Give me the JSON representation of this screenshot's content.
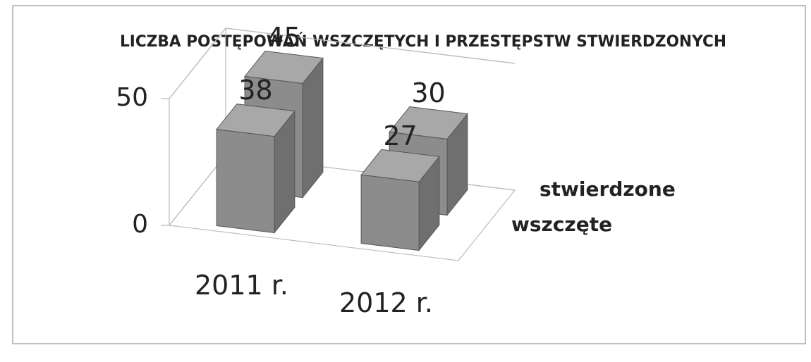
{
  "chart_data": {
    "type": "bar3d",
    "title": "LICZBA POSTĘPOWAŃ WSZCZĘTYCH I PRZESTĘPSTW STWIERDZONYCH",
    "categories": [
      "2011 r.",
      "2012 r."
    ],
    "series": [
      {
        "name": "wszczęte",
        "color": "#8c8c8c",
        "values": [
          38,
          27
        ]
      },
      {
        "name": "stwierdzone",
        "color": "#8c8c8c",
        "values": [
          45,
          30
        ]
      }
    ],
    "ylim": [
      0,
      50
    ],
    "yticks": [
      0,
      50
    ]
  }
}
